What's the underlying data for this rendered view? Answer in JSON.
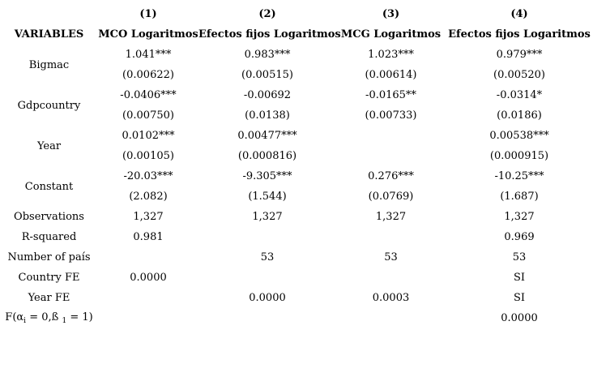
{
  "table": {
    "model_numbers": [
      "(1)",
      "(2)",
      "(3)",
      "(4)"
    ],
    "variables_header": "VARIABLES",
    "model_names": [
      "MCO Logaritmos",
      "Efectos fijos Logaritmos",
      "MCG Logaritmos",
      "Efectos fijos Logaritmos"
    ],
    "coef_rows": [
      {
        "label": "Bigmac",
        "coefs": [
          "1.041***",
          "0.983***",
          "1.023***",
          "0.979***"
        ],
        "ses": [
          "(0.00622)",
          "(0.00515)",
          "(0.00614)",
          "(0.00520)"
        ]
      },
      {
        "label": "Gdpcountry",
        "coefs": [
          "-0.0406***",
          "-0.00692",
          "-0.0165**",
          "-0.0314*"
        ],
        "ses": [
          "(0.00750)",
          "(0.0138)",
          "(0.00733)",
          "(0.0186)"
        ]
      },
      {
        "label": "Year",
        "coefs": [
          "0.0102***",
          "0.00477***",
          "",
          "0.00538***"
        ],
        "ses": [
          "(0.00105)",
          "(0.000816)",
          "",
          "(0.000915)"
        ]
      },
      {
        "label": "Constant",
        "coefs": [
          "-20.03***",
          "-9.305***",
          "0.276***",
          "-10.25***"
        ],
        "ses": [
          "(2.082)",
          "(1.544)",
          "(0.0769)",
          "(1.687)"
        ]
      }
    ],
    "stat_rows": [
      {
        "label": "Observations",
        "values": [
          "1,327",
          "1,327",
          "1,327",
          "1,327"
        ]
      },
      {
        "label": "R-squared",
        "values": [
          "0.981",
          "",
          "",
          "0.969"
        ]
      },
      {
        "label": "Number of país",
        "values": [
          "",
          "53",
          "53",
          "53"
        ]
      },
      {
        "label": "Country FE",
        "values": [
          "0.0000",
          "",
          "",
          "SI"
        ]
      },
      {
        "label": "Year FE",
        "values": [
          "",
          "0.0000",
          "0.0003",
          "SI"
        ]
      }
    ],
    "f_row": {
      "pre": "F(α",
      "sub_i": "i",
      "mid": " = 0,ß ",
      "sub_1": "1",
      "post": " = 1)",
      "values": [
        "",
        "",
        "",
        "0.0000"
      ]
    }
  }
}
